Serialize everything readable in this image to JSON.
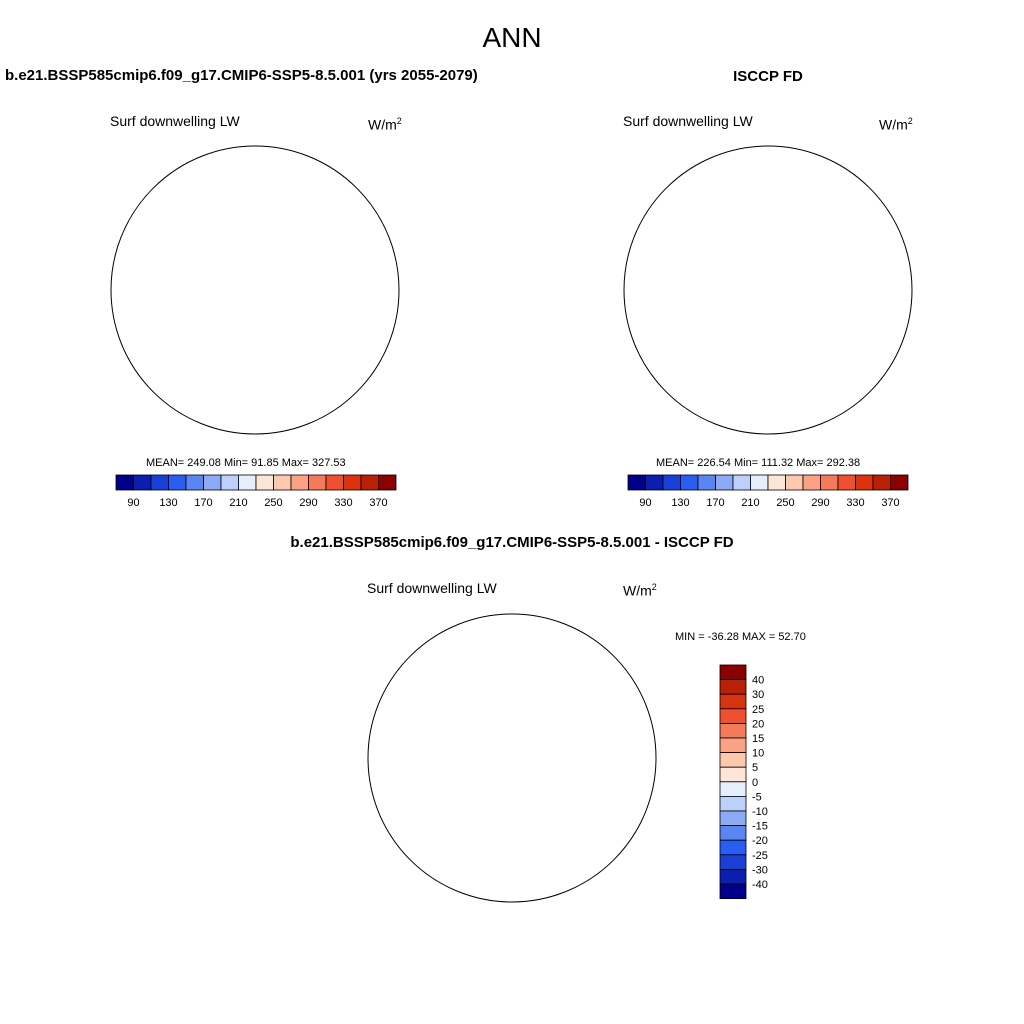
{
  "title": "ANN",
  "panels": [
    {
      "title": "b.e21.BSSP585cmip6.f09_g17.CMIP6-SSP5-8.5.001 (yrs 2055-2079)",
      "variable": "Surf downwelling LW",
      "units_base": "W/m",
      "units_exp": "2",
      "stats": {
        "label": "MEAN= 249.08  Min=  91.85  Max= 327.53",
        "mean": 249.08,
        "min": 91.85,
        "max": 327.53
      },
      "has_pole_hole": false
    },
    {
      "title": "ISCCP FD",
      "variable": "Surf downwelling LW",
      "units_base": "W/m",
      "units_exp": "2",
      "stats": {
        "label": "MEAN= 226.54  Min= 111.32  Max= 292.38",
        "mean": 226.54,
        "min": 111.32,
        "max": 292.38
      },
      "has_pole_hole": true
    },
    {
      "title": "b.e21.BSSP585cmip6.f09_g17.CMIP6-SSP5-8.5.001 - ISCCP FD",
      "variable": "Surf downwelling LW",
      "units_base": "W/m",
      "units_exp": "2",
      "stats": {
        "label": "MIN = -36.28 MAX =  52.70",
        "min": -36.28,
        "max": 52.7
      },
      "has_pole_hole": true
    }
  ],
  "colorbar_abs": {
    "colors": [
      "#00008b",
      "#0a1fb0",
      "#1a3fd6",
      "#2a5ef0",
      "#5a86f4",
      "#8caaf6",
      "#bcd0fa",
      "#e6eefc",
      "#fde6d8",
      "#fcc8ae",
      "#f9a384",
      "#f57a5a",
      "#ef5030",
      "#dc3210",
      "#b82008",
      "#8b0000"
    ],
    "labels": [
      "90",
      "130",
      "170",
      "210",
      "250",
      "290",
      "330",
      "370"
    ]
  },
  "colorbar_diff": {
    "colors": [
      "#8b0000",
      "#b82008",
      "#d43510",
      "#ef5030",
      "#f57a5a",
      "#f9a384",
      "#fcc8ae",
      "#fde6d8",
      "#e6eefc",
      "#bcd0fa",
      "#8caaf6",
      "#5a86f4",
      "#2a5ef0",
      "#1a3fd6",
      "#0a1fb0",
      "#00008b"
    ],
    "labels": [
      "40",
      "30",
      "25",
      "20",
      "15",
      "10",
      "5",
      "0",
      "-5",
      "-10",
      "-15",
      "-20",
      "-25",
      "-30",
      "-40"
    ]
  }
}
